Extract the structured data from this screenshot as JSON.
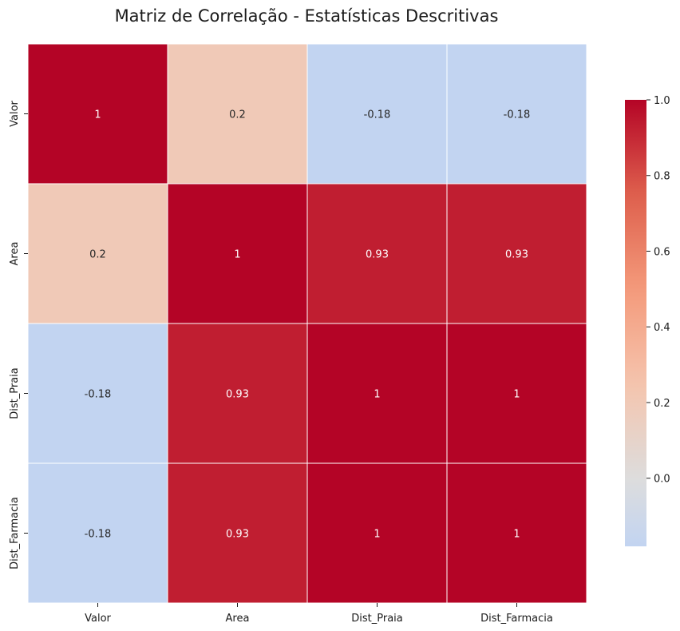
{
  "chart_data": {
    "type": "heatmap",
    "title": "Matriz de Correlação - Estatísticas Descritivas",
    "xlabel": "",
    "ylabel": "",
    "x_categories": [
      "Valor",
      "Area",
      "Dist_Praia",
      "Dist_Farmacia"
    ],
    "y_categories": [
      "Valor",
      "Area",
      "Dist_Praia",
      "Dist_Farmacia"
    ],
    "values": [
      [
        1,
        0.2,
        -0.18,
        -0.18
      ],
      [
        0.2,
        1,
        0.93,
        0.93
      ],
      [
        -0.18,
        0.93,
        1,
        1
      ],
      [
        -0.18,
        0.93,
        1,
        1
      ]
    ],
    "cell_labels": [
      [
        "1",
        "0.2",
        "-0.18",
        "-0.18"
      ],
      [
        "0.2",
        "1",
        "0.93",
        "0.93"
      ],
      [
        "-0.18",
        "0.93",
        "1",
        "1"
      ],
      [
        "-0.18",
        "0.93",
        "1",
        "1"
      ]
    ],
    "colormap": "coolwarm",
    "center": 0,
    "colorbar": {
      "range": [
        -0.18,
        1.0
      ],
      "ticks": [
        0.0,
        0.2,
        0.4,
        0.6,
        0.8,
        1.0
      ],
      "tick_labels": [
        "0.0",
        "0.2",
        "0.4",
        "0.6",
        "0.8",
        "1.0"
      ],
      "placement": "right"
    },
    "grid": false
  }
}
